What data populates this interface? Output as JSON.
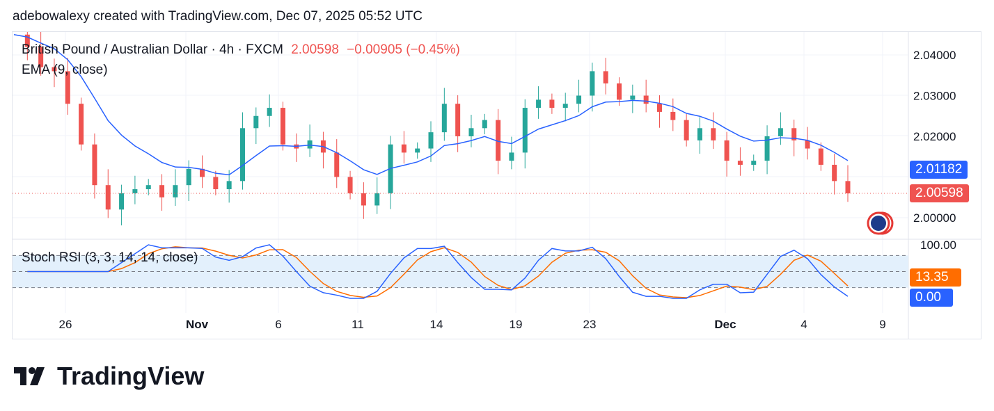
{
  "header": {
    "attribution": "adebowalexy created with TradingView.com, Dec 07, 2025 05:52 UTC"
  },
  "legend": {
    "symbol": "British Pound / Australian Dollar · 4h · FXCM",
    "price": "2.00598",
    "change": "−0.00905 (−0.45%)",
    "ema": "EMA (9, close)",
    "stoch": "Stoch RSI (3, 3, 14, 14, close)"
  },
  "colors": {
    "up": "#26a69a",
    "down": "#ef5350",
    "ema": "#2962ff",
    "stoch_k": "#2962ff",
    "stoch_d": "#ff6d00",
    "band": "#e3f0fc"
  },
  "chart_data": {
    "type": "candlestick",
    "title": "British Pound / Australian Dollar · 4h · FXCM",
    "closes": [
      2.045,
      2.042,
      2.037,
      2.036,
      2.028,
      2.018,
      2.008,
      2.002,
      2.006,
      2.007,
      2.008,
      2.005,
      2.008,
      2.012,
      2.01,
      2.007,
      2.009,
      2.022,
      2.025,
      2.027,
      2.018,
      2.017,
      2.019,
      2.016,
      2.01,
      2.006,
      2.003,
      2.006,
      2.018,
      2.016,
      2.017,
      2.021,
      2.028,
      2.02,
      2.022,
      2.024,
      2.014,
      2.016,
      2.027,
      2.029,
      2.027,
      2.028,
      2.03,
      2.036,
      2.033,
      2.029,
      2.03,
      2.028,
      2.026,
      2.024,
      2.019,
      2.022,
      2.019,
      2.014,
      2.013,
      2.014,
      2.02,
      2.022,
      2.019,
      2.017,
      2.013,
      2.009,
      2.00598
    ],
    "price_axis": {
      "ticks": [
        "2.04000",
        "2.03000",
        "2.02000",
        "2.00000"
      ],
      "ylim": [
        1.9945,
        2.0505
      ]
    },
    "time_axis": {
      "ticks": [
        "26",
        "Nov",
        "6",
        "11",
        "14",
        "19",
        "23",
        "Dec",
        "4",
        "9"
      ]
    },
    "last_price": "2.00598",
    "ema_last": "2.01182",
    "stoch_axis": {
      "ticks": [
        "100.00"
      ],
      "bands": [
        20,
        50,
        80
      ]
    },
    "stoch_k_last": "0.00",
    "stoch_d_last": "13.35",
    "grid": true
  },
  "brand": {
    "name": "TradingView"
  }
}
